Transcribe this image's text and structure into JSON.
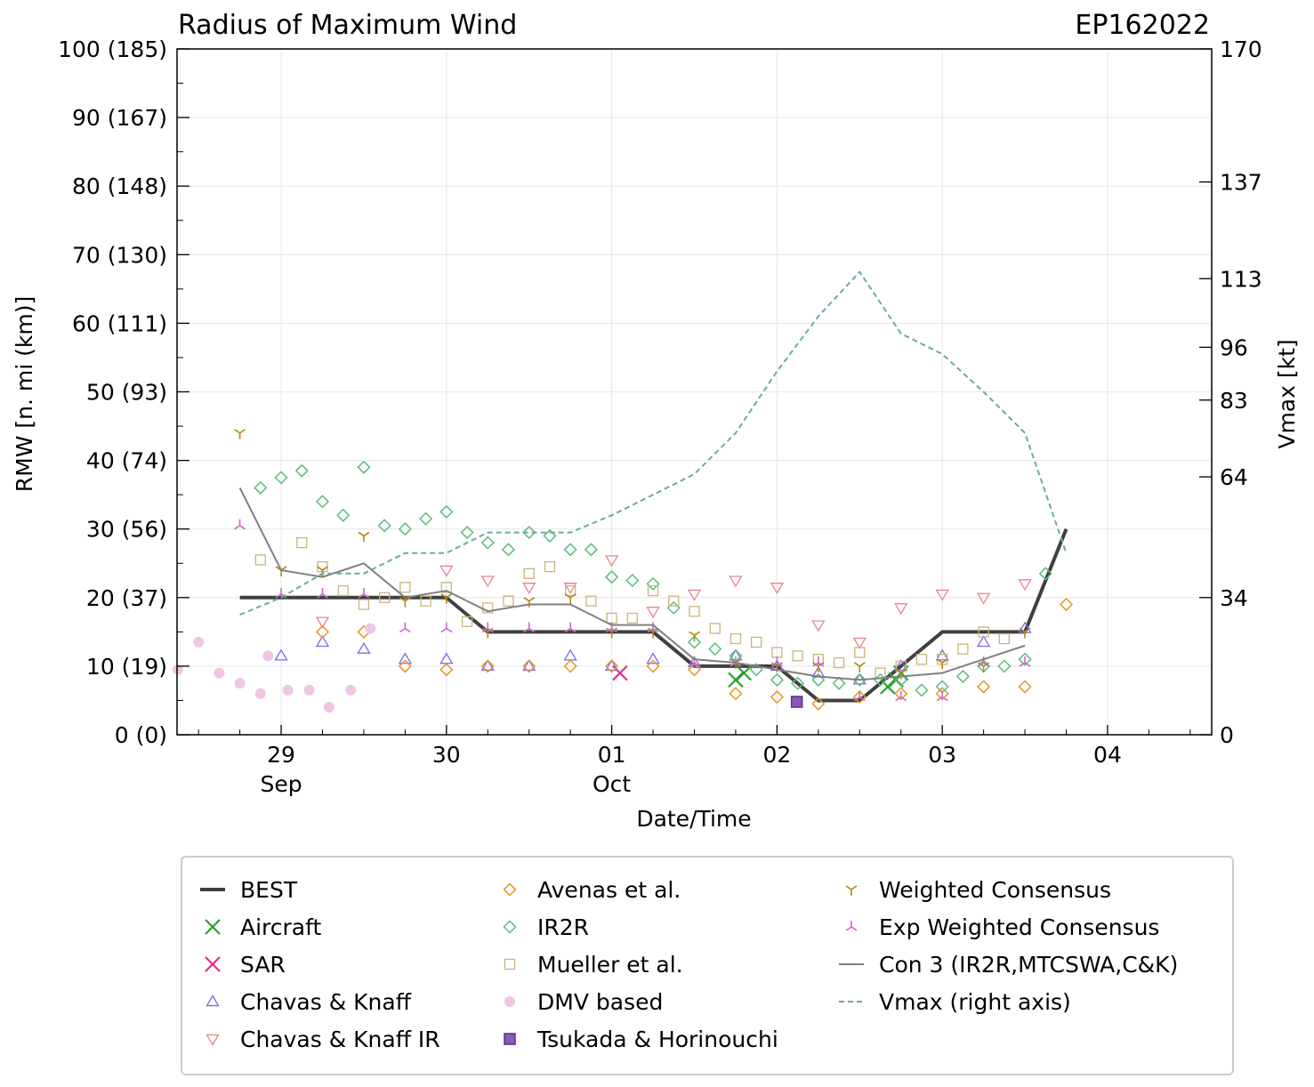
{
  "chart_data": {
    "type": "scatter",
    "title": "Radius of Maximum Wind",
    "storm_id": "EP162022",
    "xlabel": "Date/Time",
    "ylabel": "RMW [n. mi (km)]",
    "y2label": "Vmax [kt]",
    "xlim": [
      -0.63,
      5.63
    ],
    "ylim": [
      0,
      100
    ],
    "y2lim": [
      0,
      170
    ],
    "x_units": "days since 29 Sep 00Z",
    "x_ticks": [
      {
        "x": 0,
        "label": "29",
        "sub": "Sep"
      },
      {
        "x": 1,
        "label": "30",
        "sub": ""
      },
      {
        "x": 2,
        "label": "01",
        "sub": "Oct"
      },
      {
        "x": 3,
        "label": "02",
        "sub": ""
      },
      {
        "x": 4,
        "label": "03",
        "sub": ""
      },
      {
        "x": 5,
        "label": "04",
        "sub": ""
      }
    ],
    "y_ticks": [
      {
        "v": 0,
        "label": "0 (0)"
      },
      {
        "v": 10,
        "label": "10 (19)"
      },
      {
        "v": 20,
        "label": "20 (37)"
      },
      {
        "v": 30,
        "label": "30 (56)"
      },
      {
        "v": 40,
        "label": "40 (74)"
      },
      {
        "v": 50,
        "label": "50 (93)"
      },
      {
        "v": 60,
        "label": "60 (111)"
      },
      {
        "v": 70,
        "label": "70 (130)"
      },
      {
        "v": 80,
        "label": "80 (148)"
      },
      {
        "v": 90,
        "label": "90 (167)"
      },
      {
        "v": 100,
        "label": "100 (185)"
      }
    ],
    "y2_ticks": [
      {
        "v": 0,
        "label": "0"
      },
      {
        "v": 20,
        "label": "34"
      },
      {
        "v": 37.6,
        "label": "64"
      },
      {
        "v": 48.8,
        "label": "83"
      },
      {
        "v": 56.5,
        "label": "96"
      },
      {
        "v": 66.5,
        "label": "113"
      },
      {
        "v": 80.6,
        "label": "137"
      },
      {
        "v": 100,
        "label": "170"
      }
    ],
    "grid": true,
    "legend_position": "below plot",
    "series": [
      {
        "name": "BEST",
        "kind": "line",
        "color": "#404040",
        "style": "thick",
        "points": [
          [
            -0.25,
            20
          ],
          [
            0,
            20
          ],
          [
            0.25,
            20
          ],
          [
            0.5,
            20
          ],
          [
            0.75,
            20
          ],
          [
            1,
            20
          ],
          [
            1.25,
            15
          ],
          [
            1.5,
            15
          ],
          [
            1.75,
            15
          ],
          [
            2,
            15
          ],
          [
            2.25,
            15
          ],
          [
            2.5,
            10
          ],
          [
            2.75,
            10
          ],
          [
            3,
            10
          ],
          [
            3.25,
            5
          ],
          [
            3.5,
            5
          ],
          [
            3.75,
            10
          ],
          [
            4,
            15
          ],
          [
            4.25,
            15
          ],
          [
            4.5,
            15
          ],
          [
            4.75,
            30
          ]
        ]
      },
      {
        "name": "Aircraft",
        "kind": "marker",
        "marker": "x",
        "color": "#2ca02c",
        "points": [
          [
            2.75,
            8
          ],
          [
            2.8,
            9
          ],
          [
            3.67,
            7
          ],
          [
            3.72,
            8
          ],
          [
            3.75,
            9
          ]
        ]
      },
      {
        "name": "SAR",
        "kind": "marker",
        "marker": "x",
        "color": "#e7298a",
        "points": [
          [
            2.05,
            9
          ]
        ]
      },
      {
        "name": "Chavas & Knaff",
        "kind": "marker",
        "marker": "tri-up",
        "color": "#7b68ee",
        "points": [
          [
            0,
            11.5
          ],
          [
            0.25,
            13.5
          ],
          [
            0.5,
            12.5
          ],
          [
            0.75,
            11
          ],
          [
            1,
            11
          ],
          [
            1.25,
            10
          ],
          [
            1.5,
            10
          ],
          [
            1.75,
            11.5
          ],
          [
            2,
            10
          ],
          [
            2.25,
            11
          ],
          [
            2.5,
            10.5
          ],
          [
            2.75,
            11.5
          ],
          [
            3,
            10
          ],
          [
            3.25,
            9
          ],
          [
            3.5,
            8
          ],
          [
            3.75,
            10
          ],
          [
            4,
            11.5
          ],
          [
            4.25,
            13.5
          ],
          [
            4.5,
            15.5
          ]
        ]
      },
      {
        "name": "Chavas & Knaff IR",
        "kind": "marker",
        "marker": "tri-down",
        "color": "#e9838c",
        "points": [
          [
            0.25,
            16.5
          ],
          [
            1,
            24
          ],
          [
            1.25,
            22.5
          ],
          [
            1.5,
            21.5
          ],
          [
            1.75,
            21.5
          ],
          [
            2,
            25.5
          ],
          [
            2.25,
            18
          ],
          [
            2.5,
            20.5
          ],
          [
            2.75,
            22.5
          ],
          [
            3,
            21.5
          ],
          [
            3.25,
            16
          ],
          [
            3.5,
            13.5
          ],
          [
            3.75,
            18.5
          ],
          [
            4,
            20.5
          ],
          [
            4.25,
            20
          ],
          [
            4.5,
            22
          ]
        ]
      },
      {
        "name": "Avenas et al.",
        "kind": "marker",
        "marker": "diamond",
        "color": "#e69522",
        "points": [
          [
            0.25,
            15
          ],
          [
            0.5,
            15
          ],
          [
            0.75,
            10
          ],
          [
            1,
            9.5
          ],
          [
            1.25,
            10
          ],
          [
            1.5,
            10
          ],
          [
            1.75,
            10
          ],
          [
            2,
            10
          ],
          [
            2.25,
            10
          ],
          [
            2.5,
            9.5
          ],
          [
            2.75,
            6
          ],
          [
            3,
            5.5
          ],
          [
            3.25,
            4.5
          ],
          [
            3.5,
            5.5
          ],
          [
            3.75,
            6
          ],
          [
            4,
            6
          ],
          [
            4.25,
            7
          ],
          [
            4.5,
            7
          ],
          [
            4.75,
            19
          ]
        ]
      },
      {
        "name": "IR2R",
        "kind": "marker",
        "marker": "diamond",
        "color": "#5dbb7c",
        "points": [
          [
            -0.125,
            36
          ],
          [
            0,
            37.5
          ],
          [
            0.125,
            38.5
          ],
          [
            0.25,
            34
          ],
          [
            0.375,
            32
          ],
          [
            0.5,
            39
          ],
          [
            0.625,
            30.5
          ],
          [
            0.75,
            30
          ],
          [
            0.875,
            31.5
          ],
          [
            1,
            32.5
          ],
          [
            1.125,
            29.5
          ],
          [
            1.25,
            28
          ],
          [
            1.375,
            27
          ],
          [
            1.5,
            29.5
          ],
          [
            1.625,
            29
          ],
          [
            1.75,
            27
          ],
          [
            1.875,
            27
          ],
          [
            2,
            23
          ],
          [
            2.125,
            22.5
          ],
          [
            2.25,
            22
          ],
          [
            2.375,
            18.5
          ],
          [
            2.5,
            13.5
          ],
          [
            2.625,
            12.5
          ],
          [
            2.75,
            11.5
          ],
          [
            2.875,
            9.5
          ],
          [
            3,
            8
          ],
          [
            3.125,
            7.5
          ],
          [
            3.25,
            8
          ],
          [
            3.375,
            7.5
          ],
          [
            3.5,
            8
          ],
          [
            3.625,
            8
          ],
          [
            3.75,
            8
          ],
          [
            3.875,
            6.5
          ],
          [
            4,
            7
          ],
          [
            4.125,
            8.5
          ],
          [
            4.25,
            10
          ],
          [
            4.375,
            10
          ],
          [
            4.5,
            11
          ],
          [
            4.625,
            23.5
          ]
        ]
      },
      {
        "name": "Mueller et al.",
        "kind": "marker",
        "marker": "square",
        "color": "#c8b57a",
        "points": [
          [
            -0.125,
            25.5
          ],
          [
            0.125,
            28
          ],
          [
            0.25,
            24.5
          ],
          [
            0.375,
            21
          ],
          [
            0.5,
            19
          ],
          [
            0.625,
            20
          ],
          [
            0.75,
            21.5
          ],
          [
            0.875,
            19.5
          ],
          [
            1,
            21.5
          ],
          [
            1.125,
            16.5
          ],
          [
            1.25,
            18.5
          ],
          [
            1.375,
            19.5
          ],
          [
            1.5,
            23.5
          ],
          [
            1.625,
            24.5
          ],
          [
            1.75,
            21
          ],
          [
            1.875,
            19.5
          ],
          [
            2,
            17
          ],
          [
            2.125,
            17
          ],
          [
            2.25,
            21
          ],
          [
            2.375,
            19.5
          ],
          [
            2.5,
            18
          ],
          [
            2.625,
            15.5
          ],
          [
            2.75,
            14
          ],
          [
            2.875,
            13.5
          ],
          [
            3,
            12
          ],
          [
            3.125,
            11.5
          ],
          [
            3.25,
            11
          ],
          [
            3.375,
            10.5
          ],
          [
            3.5,
            12
          ],
          [
            3.625,
            9
          ],
          [
            3.75,
            10
          ],
          [
            3.875,
            11
          ],
          [
            4,
            11
          ],
          [
            4.125,
            12.5
          ],
          [
            4.25,
            15
          ],
          [
            4.375,
            14
          ]
        ]
      },
      {
        "name": "DMV based",
        "kind": "marker",
        "marker": "circle",
        "color": "#f0c6e4",
        "points": [
          [
            -0.625,
            9.5
          ],
          [
            -0.5,
            13.5
          ],
          [
            -0.375,
            9
          ],
          [
            -0.25,
            7.5
          ],
          [
            -0.125,
            6
          ],
          [
            -0.08,
            11.5
          ],
          [
            0.04,
            6.5
          ],
          [
            0.17,
            6.5
          ],
          [
            0.29,
            4
          ],
          [
            0.42,
            6.5
          ],
          [
            0.54,
            15.5
          ]
        ]
      },
      {
        "name": "Tsukada & Horinouchi",
        "kind": "marker",
        "marker": "square-filled",
        "color": "#8a5ab4",
        "points": [
          [
            3.12,
            4.8
          ]
        ]
      },
      {
        "name": "Weighted Consensus",
        "kind": "marker",
        "marker": "tri-y",
        "color": "#b8860b",
        "points": [
          [
            -0.25,
            44
          ],
          [
            0,
            24
          ],
          [
            0.25,
            24
          ],
          [
            0.5,
            29
          ],
          [
            0.75,
            19.5
          ],
          [
            1,
            20
          ],
          [
            1.25,
            15
          ],
          [
            1.5,
            19.5
          ],
          [
            1.75,
            20
          ],
          [
            2,
            15
          ],
          [
            2.25,
            15
          ],
          [
            2.5,
            14.5
          ],
          [
            2.75,
            10.5
          ],
          [
            3,
            10
          ],
          [
            3.25,
            10
          ],
          [
            3.5,
            10
          ],
          [
            3.75,
            9
          ],
          [
            4,
            10.5
          ],
          [
            4.25,
            10
          ],
          [
            4.5,
            15
          ]
        ]
      },
      {
        "name": "Exp Weighted Consensus",
        "kind": "marker",
        "marker": "tri-y-inv",
        "color": "#cc66cc",
        "points": [
          [
            -0.25,
            30.5
          ],
          [
            0,
            20.5
          ],
          [
            0.25,
            20.5
          ],
          [
            0.5,
            20.5
          ],
          [
            0.75,
            15.5
          ],
          [
            1,
            15.5
          ],
          [
            1.25,
            15.5
          ],
          [
            1.5,
            15.5
          ],
          [
            1.75,
            15.5
          ],
          [
            2,
            15.5
          ],
          [
            2.25,
            15.5
          ],
          [
            2.5,
            10.5
          ],
          [
            2.75,
            10.5
          ],
          [
            3,
            10.5
          ],
          [
            3.25,
            10.5
          ],
          [
            3.5,
            5.5
          ],
          [
            3.75,
            5.5
          ],
          [
            4,
            5.5
          ],
          [
            4.25,
            10.5
          ],
          [
            4.5,
            10.5
          ]
        ]
      },
      {
        "name": "Con 3 (IR2R,MTCSWA,C&K)",
        "kind": "line",
        "color": "#808080",
        "style": "thin",
        "points": [
          [
            -0.25,
            36
          ],
          [
            0,
            24
          ],
          [
            0.25,
            23
          ],
          [
            0.5,
            25
          ],
          [
            0.75,
            20
          ],
          [
            1,
            21
          ],
          [
            1.25,
            18
          ],
          [
            1.5,
            19
          ],
          [
            1.75,
            19
          ],
          [
            2,
            16
          ],
          [
            2.25,
            16
          ],
          [
            2.5,
            11
          ],
          [
            2.75,
            10.5
          ],
          [
            3,
            9.5
          ],
          [
            3.25,
            8.5
          ],
          [
            3.5,
            8
          ],
          [
            3.75,
            8.5
          ],
          [
            4,
            9
          ],
          [
            4.25,
            11
          ],
          [
            4.5,
            13
          ]
        ]
      },
      {
        "name": "Vmax (right axis)",
        "kind": "line",
        "color": "#6aa8ab",
        "style": "dashed",
        "axis": "right",
        "points": [
          [
            -0.25,
            17.5
          ],
          [
            0,
            20
          ],
          [
            0.25,
            23.5
          ],
          [
            0.5,
            23.5
          ],
          [
            0.75,
            26.5
          ],
          [
            1,
            26.5
          ],
          [
            1.25,
            29.5
          ],
          [
            1.5,
            29.5
          ],
          [
            1.75,
            29.5
          ],
          [
            2,
            32
          ],
          [
            2.25,
            35
          ],
          [
            2.5,
            38
          ],
          [
            2.75,
            44
          ],
          [
            3,
            53
          ],
          [
            3.25,
            61
          ],
          [
            3.5,
            67.5
          ],
          [
            3.75,
            58.5
          ],
          [
            4,
            55.5
          ],
          [
            4.25,
            50
          ],
          [
            4.5,
            44
          ],
          [
            4.75,
            26.5
          ]
        ]
      }
    ]
  }
}
